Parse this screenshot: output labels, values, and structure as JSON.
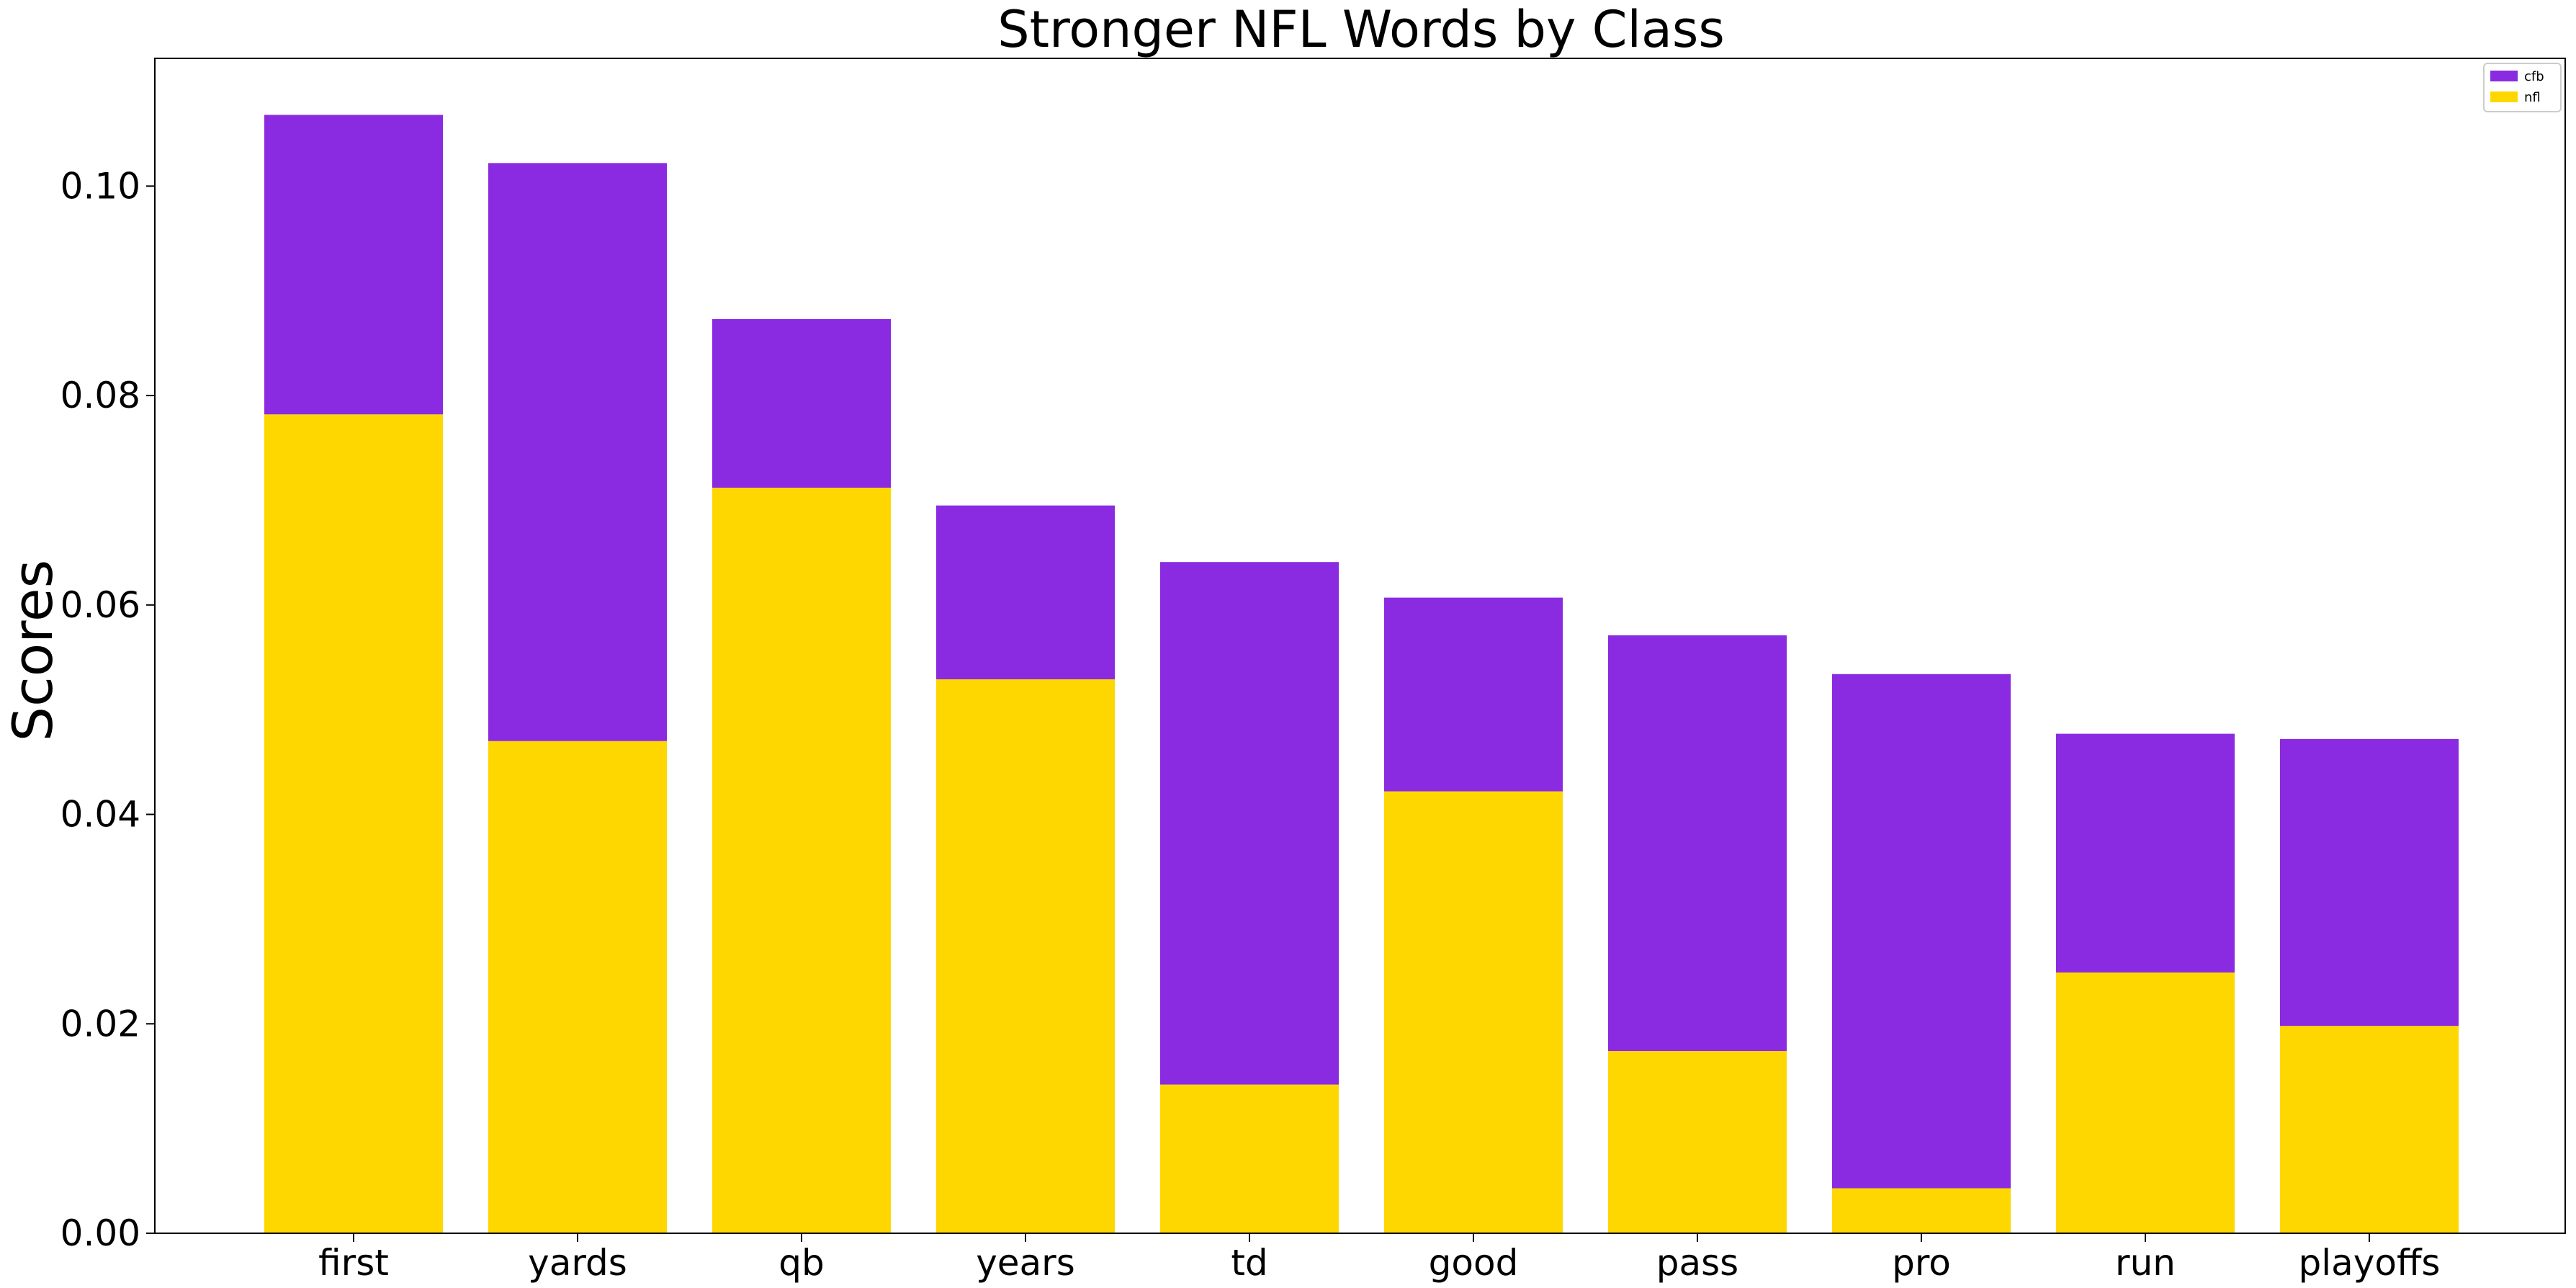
{
  "chart_data": {
    "type": "bar",
    "stacked": true,
    "title": "Stronger NFL Words by Class",
    "xlabel": "",
    "ylabel": "Scores",
    "categories": [
      "first",
      "yards",
      "qb",
      "years",
      "td",
      "good",
      "pass",
      "pro",
      "run",
      "playoffs"
    ],
    "series": [
      {
        "name": "nfl",
        "color": "#FFD700",
        "values": [
          0.0782,
          0.047,
          0.0712,
          0.0529,
          0.0142,
          0.0422,
          0.0174,
          0.0043,
          0.0249,
          0.0198
        ]
      },
      {
        "name": "cfb",
        "color": "#8A2BE2",
        "values": [
          0.0286,
          0.0552,
          0.0161,
          0.0166,
          0.0499,
          0.0185,
          0.0397,
          0.0491,
          0.0228,
          0.0274
        ]
      }
    ],
    "legend_order": [
      "cfb",
      "nfl"
    ],
    "ylim": [
      0,
      0.1122
    ],
    "yticks": [
      "0.00",
      "0.02",
      "0.04",
      "0.06",
      "0.08",
      "0.10"
    ],
    "ytick_values": [
      0,
      0.02,
      0.04,
      0.06,
      0.08,
      0.1
    ],
    "legend_position": "top-right",
    "grid": false
  }
}
